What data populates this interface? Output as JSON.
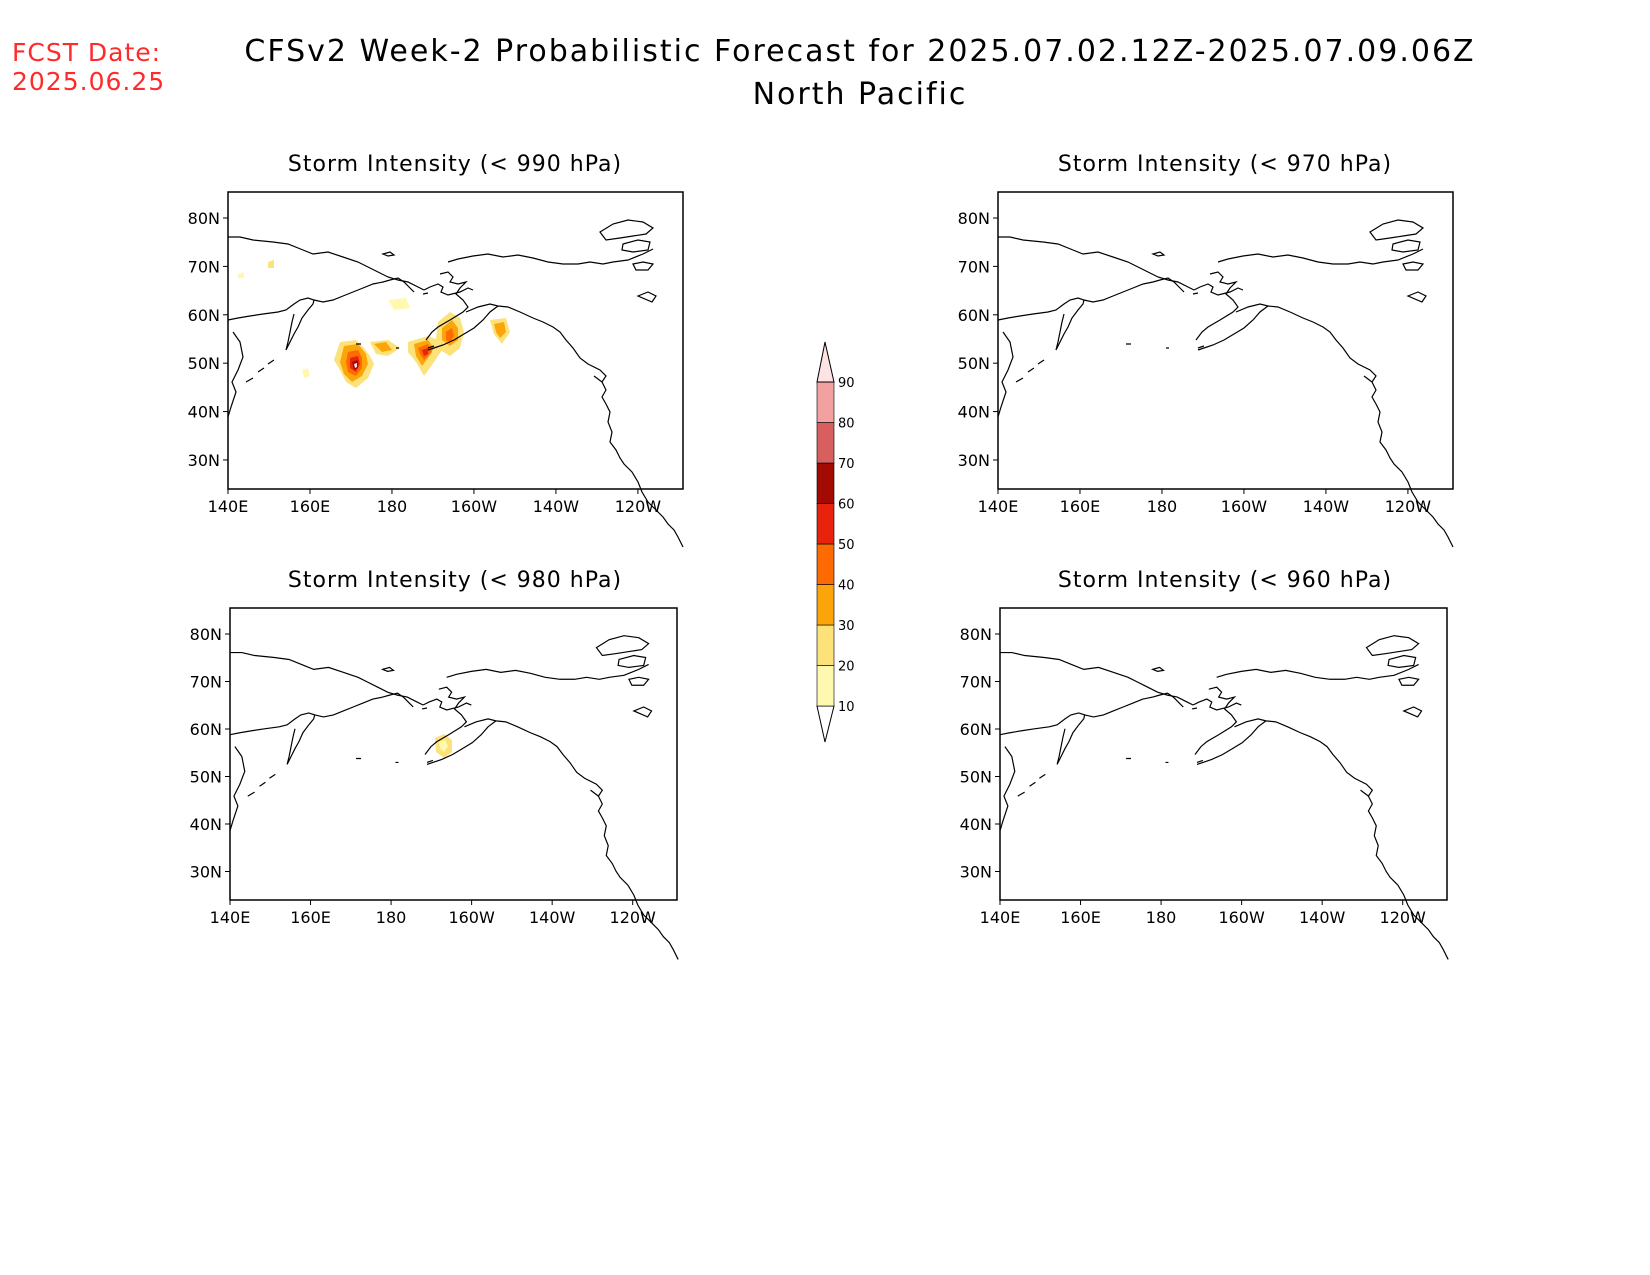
{
  "header": {
    "fcst_label": "FCST Date:",
    "fcst_date": "2025.06.25",
    "title": "CFSv2 Week-2 Probabilistic Forecast for 2025.07.02.12Z-2025.07.09.06Z",
    "region": "North Pacific"
  },
  "axes": {
    "lon_ticks": [
      "140E",
      "160E",
      "180",
      "160W",
      "140W",
      "120W"
    ],
    "lat_ticks": [
      "80N",
      "70N",
      "60N",
      "50N",
      "40N",
      "30N"
    ]
  },
  "panels": [
    {
      "id": "p990",
      "title": "Storm Intensity (< 990 hPa)"
    },
    {
      "id": "p970",
      "title": "Storm Intensity (< 970 hPa)"
    },
    {
      "id": "p980",
      "title": "Storm Intensity (< 980 hPa)"
    },
    {
      "id": "p960",
      "title": "Storm Intensity (< 960 hPa)"
    }
  ],
  "colorbar": {
    "levels": [
      "10",
      "20",
      "30",
      "40",
      "50",
      "60",
      "70",
      "80",
      "90"
    ],
    "colors": [
      "#fff9b0",
      "#fde27a",
      "#fca50a",
      "#fd6a02",
      "#e8220c",
      "#a30a02",
      "#d95f5f",
      "#f2a0a0",
      "#fde3e3"
    ]
  }
}
